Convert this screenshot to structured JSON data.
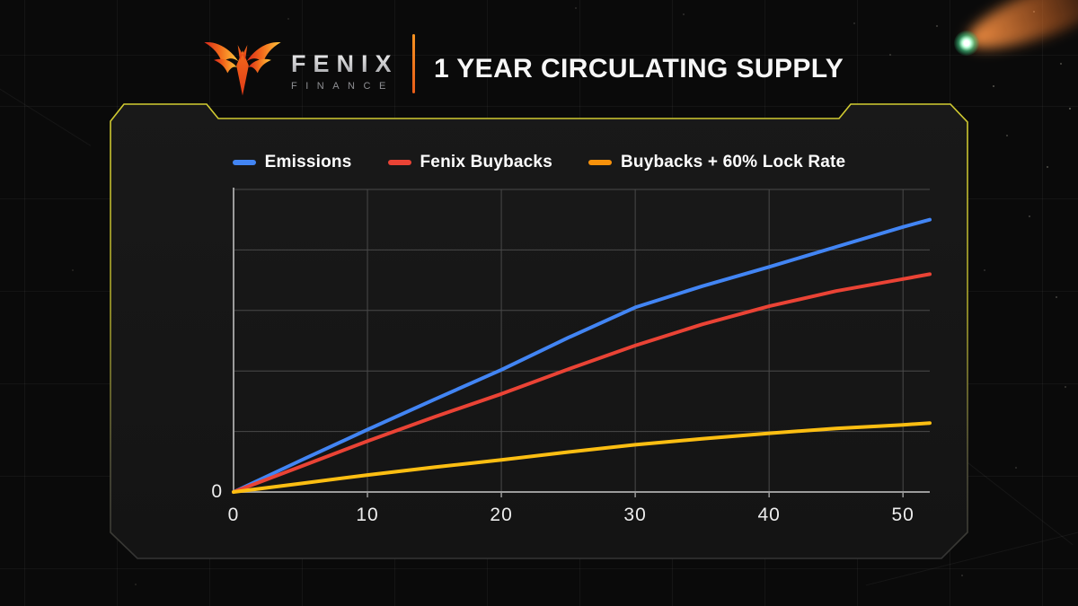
{
  "header": {
    "brand_name": "FENIX",
    "brand_subtitle": "FINANCE",
    "title": "1 YEAR CIRCULATING SUPPLY"
  },
  "legend": [
    {
      "label": "Emissions",
      "color": "#4285F4"
    },
    {
      "label": "Fenix Buybacks",
      "color": "#EA4335"
    },
    {
      "label": "Buybacks + 60% Lock Rate",
      "color": "#F8920B"
    }
  ],
  "chart_data": {
    "type": "line",
    "title": "1 Year Circulating Supply",
    "xlabel": "",
    "ylabel": "",
    "x": [
      0,
      5,
      10,
      15,
      20,
      25,
      30,
      35,
      40,
      45,
      50,
      52
    ],
    "series": [
      {
        "name": "Emissions",
        "color": "#4285F4",
        "values": [
          0,
          0.52,
          1.03,
          1.53,
          2.02,
          2.55,
          3.05,
          3.4,
          3.72,
          4.05,
          4.38,
          4.5
        ]
      },
      {
        "name": "Fenix Buybacks",
        "color": "#EA4335",
        "values": [
          0,
          0.42,
          0.84,
          1.24,
          1.62,
          2.03,
          2.42,
          2.77,
          3.07,
          3.32,
          3.52,
          3.6
        ]
      },
      {
        "name": "Buybacks + 60% Lock Rate",
        "color": "#FCBE12",
        "values": [
          0,
          0.14,
          0.28,
          0.41,
          0.53,
          0.66,
          0.78,
          0.88,
          0.97,
          1.05,
          1.11,
          1.14
        ]
      }
    ],
    "xlim": [
      0,
      52
    ],
    "ylim": [
      0,
      5
    ],
    "x_ticks": [
      0,
      10,
      20,
      30,
      40,
      50
    ],
    "y_tick_labels_visible": [
      "0"
    ],
    "y_gridline_step": 1,
    "grid": true,
    "legend_position": "top"
  },
  "colors": {
    "background": "#0a0a0a",
    "panel_fill": "#171717",
    "frame_accent": "#CDC72F",
    "divider_orange": "#F4831F",
    "grid_line": "#4a4a4a",
    "axis_line": "#9b9b9b",
    "tick_text": "#ededed",
    "series_blue": "#4285F4",
    "series_red": "#EA4335",
    "series_yellow_line": "#FCBE12",
    "legend_yellow_marker": "#F8920B"
  }
}
